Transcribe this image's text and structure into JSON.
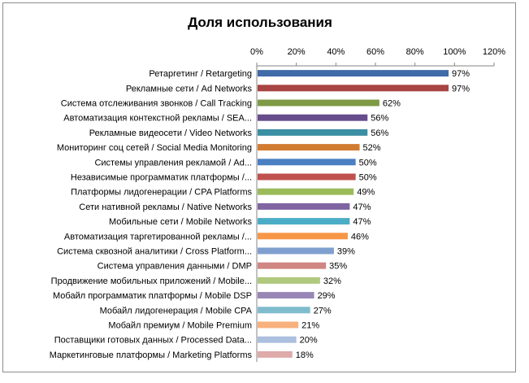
{
  "chart_data": {
    "type": "bar",
    "orientation": "horizontal",
    "title": "Доля использования",
    "xlabel": "",
    "ylabel": "",
    "xlim": [
      0,
      120
    ],
    "x_ticks": [
      "0%",
      "20%",
      "40%",
      "60%",
      "80%",
      "100%",
      "120%"
    ],
    "axis_position": "top",
    "grid": false,
    "legend": "none",
    "categories": [
      "Ретаргетинг / Retargeting",
      "Рекламные сети / Ad Networks",
      "Система отслеживания звонков / Call Tracking",
      "Автоматизация контекстной рекламы / SEA...",
      "Рекламные видеосети / Video Networks",
      "Мониторинг соц сетей / Social Media Monitoring",
      "Системы управления рекламой / Ad...",
      "Независимые программатик платформы /...",
      "Платформы лидогенерации / CPA Platforms",
      "Сети нативной рекламы / Native Networks",
      "Мобильные сети / Mobile Networks",
      "Автоматизация таргетированной рекламы /...",
      "Система сквозной аналитики / Cross Platform...",
      "Система управления данными / DMP",
      "Продвижение мобильных приложений / Mobile...",
      "Мобайл программатик платформы / Mobile DSP",
      "Мобайл лидогенерация / Mobile CPA",
      "Мобайл премиум / Mobile Premium",
      "Поставщики готовых данных / Processed Data...",
      "Маркетинговые платформы / Marketing Platforms"
    ],
    "values": [
      97,
      97,
      62,
      56,
      56,
      52,
      50,
      50,
      49,
      47,
      47,
      46,
      39,
      35,
      32,
      29,
      27,
      21,
      20,
      18
    ],
    "data_labels": [
      "97%",
      "97%",
      "62%",
      "56%",
      "56%",
      "52%",
      "50%",
      "50%",
      "49%",
      "47%",
      "47%",
      "46%",
      "39%",
      "35%",
      "32%",
      "29%",
      "27%",
      "21%",
      "20%",
      "18%"
    ],
    "colors": [
      "#3f6ba8",
      "#a84442",
      "#7e9a45",
      "#674d8c",
      "#3b8fa3",
      "#d27c31",
      "#4a7fc1",
      "#c0504d",
      "#9bbb59",
      "#8064a2",
      "#4bacc6",
      "#f79646",
      "#7f9fcf",
      "#d08683",
      "#b0c97e",
      "#9886b5",
      "#7fbccd",
      "#f8b07c",
      "#abbfdf",
      "#dfaaaa"
    ]
  }
}
